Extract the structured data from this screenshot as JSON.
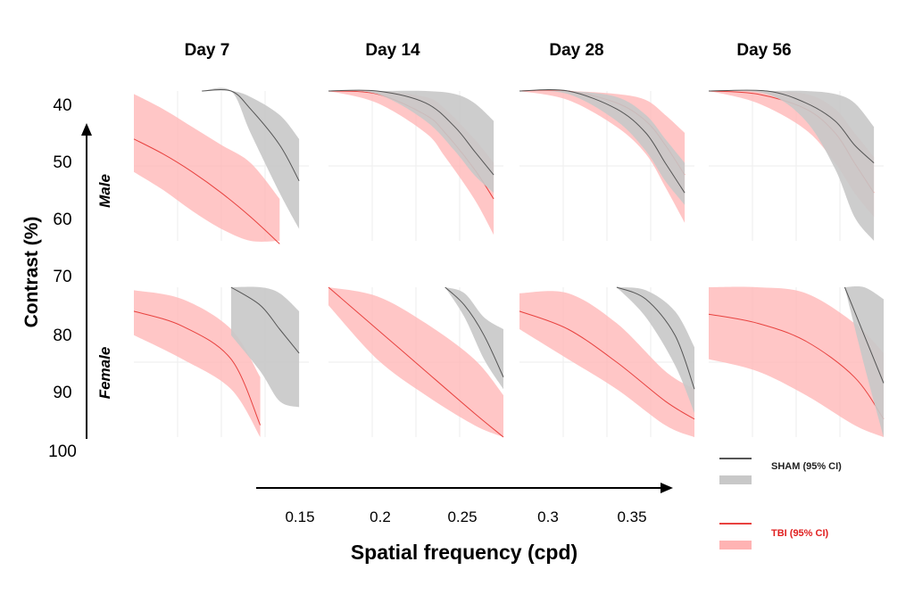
{
  "chart_data": {
    "type": "line",
    "columns": [
      "Day 7",
      "Day 14",
      "Day 28",
      "Day 56"
    ],
    "rows": [
      "Male",
      "Female"
    ],
    "y_ticks": [
      "40",
      "50",
      "60",
      "70",
      "80",
      "90",
      "100"
    ],
    "x_ticks": [
      "0.15",
      "0.2",
      "0.25",
      "0.3",
      "0.35"
    ],
    "ylabel": "Contrast  (%)",
    "xlabel": "Spatial frequency (cpd)",
    "legend": [
      {
        "name": "SHAM (95% CI)",
        "line_color": "#555555",
        "band_color": "#c8c8c8"
      },
      {
        "name": "TBI (95% CI)",
        "line_color": "#e8423f",
        "band_color": "#ffb3b3"
      }
    ],
    "panels": [
      {
        "row": "Male",
        "col": "Day 7",
        "sham": {
          "x": [
            0.17,
            0.2,
            0.22,
            0.25,
            0.27
          ],
          "mid": [
            38,
            38,
            41,
            47,
            53
          ],
          "lo": [
            38,
            38,
            39,
            42,
            46
          ],
          "hi": [
            38,
            38,
            45,
            55,
            61
          ]
        },
        "tbi": {
          "x": [
            0.1,
            0.13,
            0.16,
            0.19,
            0.22,
            0.25
          ],
          "mid": [
            46,
            48.5,
            51.5,
            55,
            59,
            63.5
          ],
          "lo": [
            38.5,
            41,
            44,
            47,
            50,
            56
          ],
          "hi": [
            51.5,
            54.5,
            58,
            61,
            63,
            63
          ]
        }
      },
      {
        "row": "Male",
        "col": "Day 14",
        "sham": {
          "x": [
            0.1,
            0.15,
            0.2,
            0.23,
            0.25,
            0.27
          ],
          "mid": [
            38,
            38,
            40,
            44,
            48,
            52
          ],
          "lo": [
            38,
            38,
            38,
            38.5,
            40,
            43
          ],
          "hi": [
            38,
            38.5,
            43,
            48,
            52,
            55
          ]
        },
        "tbi": {
          "x": [
            0.1,
            0.15,
            0.2,
            0.22,
            0.25,
            0.27
          ],
          "mid": [
            38,
            38.5,
            42,
            45,
            51,
            56
          ],
          "lo": [
            38,
            38,
            39,
            41,
            46,
            50
          ],
          "hi": [
            38,
            40,
            45,
            49,
            56,
            62
          ]
        }
      },
      {
        "row": "Male",
        "col": "Day 28",
        "sham": {
          "x": [
            0.1,
            0.15,
            0.2,
            0.23,
            0.25,
            0.27
          ],
          "mid": [
            38,
            38,
            41,
            45,
            50,
            55
          ],
          "lo": [
            38,
            38,
            39,
            42,
            46,
            50
          ],
          "hi": [
            38,
            38.5,
            43,
            48,
            53,
            57
          ]
        },
        "tbi": {
          "x": [
            0.1,
            0.15,
            0.2,
            0.23,
            0.25,
            0.27
          ],
          "mid": [
            38,
            38,
            40,
            43,
            47,
            52
          ],
          "lo": [
            38,
            38,
            38.5,
            39.5,
            42,
            45
          ],
          "hi": [
            38,
            39.5,
            44,
            48.5,
            54,
            60
          ]
        }
      },
      {
        "row": "Male",
        "col": "Day 56",
        "sham": {
          "x": [
            0.1,
            0.16,
            0.2,
            0.23,
            0.25,
            0.27
          ],
          "mid": [
            38,
            38,
            40,
            43,
            47,
            50
          ],
          "lo": [
            38,
            38,
            38,
            38.5,
            40,
            44
          ],
          "hi": [
            38,
            38.5,
            43,
            51,
            59,
            63
          ]
        },
        "tbi": {
          "x": [
            0.1,
            0.15,
            0.2,
            0.23,
            0.25,
            0.27
          ],
          "mid": [
            38,
            38.5,
            41,
            45,
            50,
            55
          ],
          "lo": [
            38,
            38,
            38.5,
            41,
            45,
            49
          ],
          "hi": [
            38,
            40,
            44.5,
            50,
            55,
            59
          ]
        }
      },
      {
        "row": "Female",
        "col": "Day 7",
        "sham": {
          "x": [
            0.2,
            0.23,
            0.25,
            0.27
          ],
          "mid": [
            72,
            75,
            79,
            83
          ],
          "lo": [
            72,
            72,
            73,
            76
          ],
          "hi": [
            80,
            86,
            91,
            92
          ]
        },
        "tbi": {
          "x": [
            0.1,
            0.15,
            0.2,
            0.23
          ],
          "mid": [
            76,
            78.5,
            84,
            95
          ],
          "lo": [
            72.5,
            74,
            79,
            87
          ],
          "hi": [
            80,
            84,
            89,
            97
          ]
        }
      },
      {
        "row": "Female",
        "col": "Day 14",
        "sham": {
          "x": [
            0.22,
            0.24,
            0.26,
            0.28
          ],
          "mid": [
            72,
            75,
            80,
            87
          ],
          "lo": [
            72,
            73,
            77,
            79
          ],
          "hi": [
            72,
            77,
            84,
            89
          ]
        },
        "tbi": {
          "x": [
            0.1,
            0.15,
            0.2,
            0.25,
            0.28
          ],
          "mid": [
            72,
            79,
            86,
            93,
            97
          ],
          "lo": [
            72,
            73.5,
            78,
            84,
            90
          ],
          "hi": [
            75,
            84,
            90,
            95,
            97
          ]
        }
      },
      {
        "row": "Female",
        "col": "Day 28",
        "sham": {
          "x": [
            0.2,
            0.23,
            0.26,
            0.28
          ],
          "mid": [
            72,
            74,
            80,
            89
          ],
          "lo": [
            72,
            72.5,
            76,
            82
          ],
          "hi": [
            72,
            77,
            85,
            93
          ]
        },
        "tbi": {
          "x": [
            0.1,
            0.15,
            0.2,
            0.25,
            0.28
          ],
          "mid": [
            76,
            79,
            84.5,
            91,
            94
          ],
          "lo": [
            73,
            73,
            78,
            86,
            89
          ],
          "hi": [
            79,
            84,
            89,
            95,
            97
          ]
        }
      },
      {
        "row": "Female",
        "col": "Day 56",
        "sham": {
          "x": [
            0.24,
            0.26,
            0.28
          ],
          "mid": [
            72,
            80,
            88
          ],
          "lo": [
            72,
            72,
            74
          ],
          "hi": [
            72,
            85,
            97
          ]
        },
        "tbi": {
          "x": [
            0.1,
            0.15,
            0.2,
            0.25,
            0.28
          ],
          "mid": [
            76.5,
            78,
            81,
            87,
            94
          ],
          "lo": [
            72,
            72,
            73,
            78,
            83
          ],
          "hi": [
            84,
            86,
            90,
            95,
            97
          ]
        }
      }
    ]
  }
}
